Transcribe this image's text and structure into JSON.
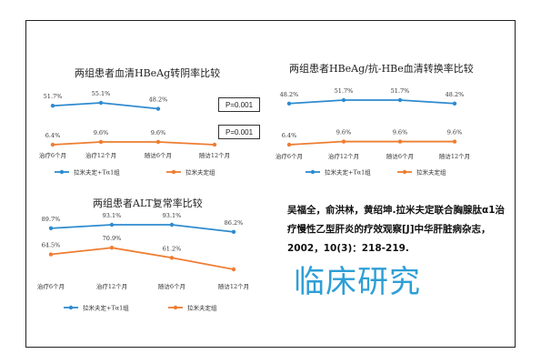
{
  "chart_data": [
    {
      "type": "line",
      "title": "两组患者血清HBeAg转阴率比较",
      "categories": [
        "治疗6个月",
        "治疗12个月",
        "随访6个月",
        "随访12个月"
      ],
      "series": [
        {
          "name": "拉米夫定+Tα1组",
          "color": "#2e8bd0",
          "values": [
            51.7,
            55.1,
            48.2,
            null
          ],
          "labels": [
            "51.7%",
            "55.1%",
            "48.2%",
            ""
          ]
        },
        {
          "name": "拉米夫定组",
          "color": "#ee7d31",
          "values": [
            6.4,
            9.6,
            9.6,
            6.4
          ],
          "labels": [
            "6.4%",
            "9.6%",
            "9.6%",
            ""
          ]
        }
      ],
      "legend": "bottom"
    },
    {
      "type": "line",
      "title": "两组患者HBeAg/抗-HBe血清转换率比较",
      "categories": [
        "治疗6个月",
        "治疗12个月",
        "随访6个月",
        "随访12个月"
      ],
      "series": [
        {
          "name": "拉米夫定+Tα1组",
          "color": "#2e8bd0",
          "values": [
            48.2,
            51.7,
            51.7,
            48.2
          ],
          "labels": [
            "48.2%",
            "51.7%",
            "51.7%",
            "48.2%"
          ]
        },
        {
          "name": "拉米夫定组",
          "color": "#ee7d31",
          "values": [
            6.4,
            9.6,
            9.6,
            9.6
          ],
          "labels": [
            "6.4%",
            "9.6%",
            "9.6%",
            "9.6%"
          ]
        }
      ],
      "legend": "bottom"
    },
    {
      "type": "line",
      "title": "两组患者ALT复常率比较",
      "categories": [
        "治疗6个月",
        "治疗12个月",
        "随访6个月",
        "随访12个月"
      ],
      "series": [
        {
          "name": "拉米夫定+Tα1组",
          "color": "#2e8bd0",
          "values": [
            89.7,
            93.1,
            93.1,
            86.2
          ],
          "labels": [
            "89.7%",
            "93.1%",
            "93.1%",
            "86.2%"
          ]
        },
        {
          "name": "拉米夫定组",
          "color": "#ee7d31",
          "values": [
            64.5,
            70.9,
            61.2,
            50
          ],
          "labels": [
            "64.5%",
            "70.9%",
            "61.2%",
            ""
          ]
        }
      ],
      "legend": "bottom"
    }
  ],
  "p_values": [
    "P=0.001",
    "P=0.001"
  ],
  "citation": "吴福全，俞洪林，黄绍坤.拉米夫定联合胸腺肽α1治疗慢性乙型肝炎的疗效观察[J]中华肝脏病杂志，2002，10(3)：218-219.",
  "footer_title": "临床研究"
}
